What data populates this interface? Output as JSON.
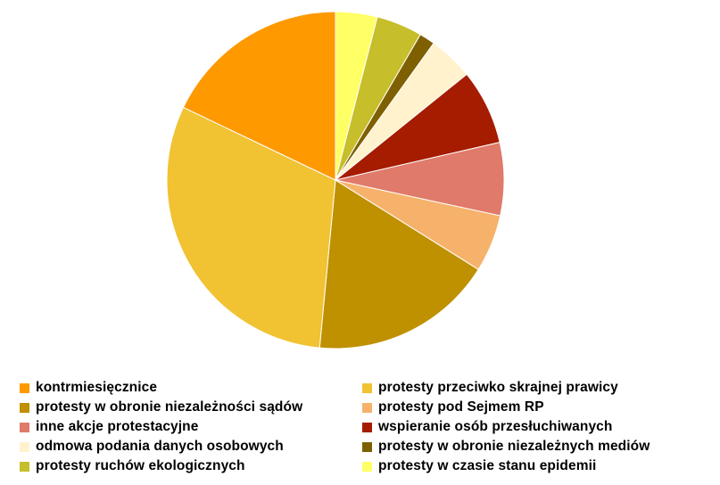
{
  "chart_data": {
    "type": "pie",
    "title": "",
    "start_angle": "12 o'clock, clockwise",
    "slices": [
      {
        "label": "protesty w czasie stanu epidemii",
        "value": 4.0,
        "color": "#FFFF66"
      },
      {
        "label": "protesty ruchów ekologicznych",
        "value": 4.4,
        "color": "#C6BE2A"
      },
      {
        "label": "protesty w obronie niezależnych mediów",
        "value": 1.5,
        "color": "#7F6000"
      },
      {
        "label": "odmowa podania danych osobowych",
        "value": 4.3,
        "color": "#FFF2CC"
      },
      {
        "label": "wspieranie osób przesłuchiwanych",
        "value": 7.2,
        "color": "#A51C00"
      },
      {
        "label": "inne akcje protestacyjne",
        "value": 7.0,
        "color": "#E07A6A"
      },
      {
        "label": "protesty pod Sejmem RP",
        "value": 5.5,
        "color": "#F6B26B"
      },
      {
        "label": "protesty w obronie niezależności sądów",
        "value": 17.6,
        "color": "#BF9000"
      },
      {
        "label": "protesty przeciwko skrajnej prawicy",
        "value": 30.6,
        "color": "#F1C232"
      },
      {
        "label": "kontrmiesięcznice",
        "value": 17.9,
        "color": "#FF9900"
      }
    ],
    "legend": {
      "position": "bottom",
      "columns": 2,
      "items": [
        {
          "label": "kontrmiesięcznice",
          "color": "#FF9900"
        },
        {
          "label": "protesty przeciwko skrajnej prawicy",
          "color": "#F1C232"
        },
        {
          "label": "protesty w obronie niezależności sądów",
          "color": "#BF9000"
        },
        {
          "label": "protesty pod Sejmem RP",
          "color": "#F6B26B"
        },
        {
          "label": "inne akcje protestacyjne",
          "color": "#E07A6A"
        },
        {
          "label": "wspieranie osób przesłuchiwanych",
          "color": "#A51C00"
        },
        {
          "label": "odmowa podania danych osobowych",
          "color": "#FFF2CC"
        },
        {
          "label": "protesty w obronie niezależnych mediów",
          "color": "#7F6000"
        },
        {
          "label": "protesty ruchów ekologicznych",
          "color": "#C6BE2A"
        },
        {
          "label": "protesty w czasie stanu epidemii",
          "color": "#FFFF66"
        }
      ]
    }
  }
}
